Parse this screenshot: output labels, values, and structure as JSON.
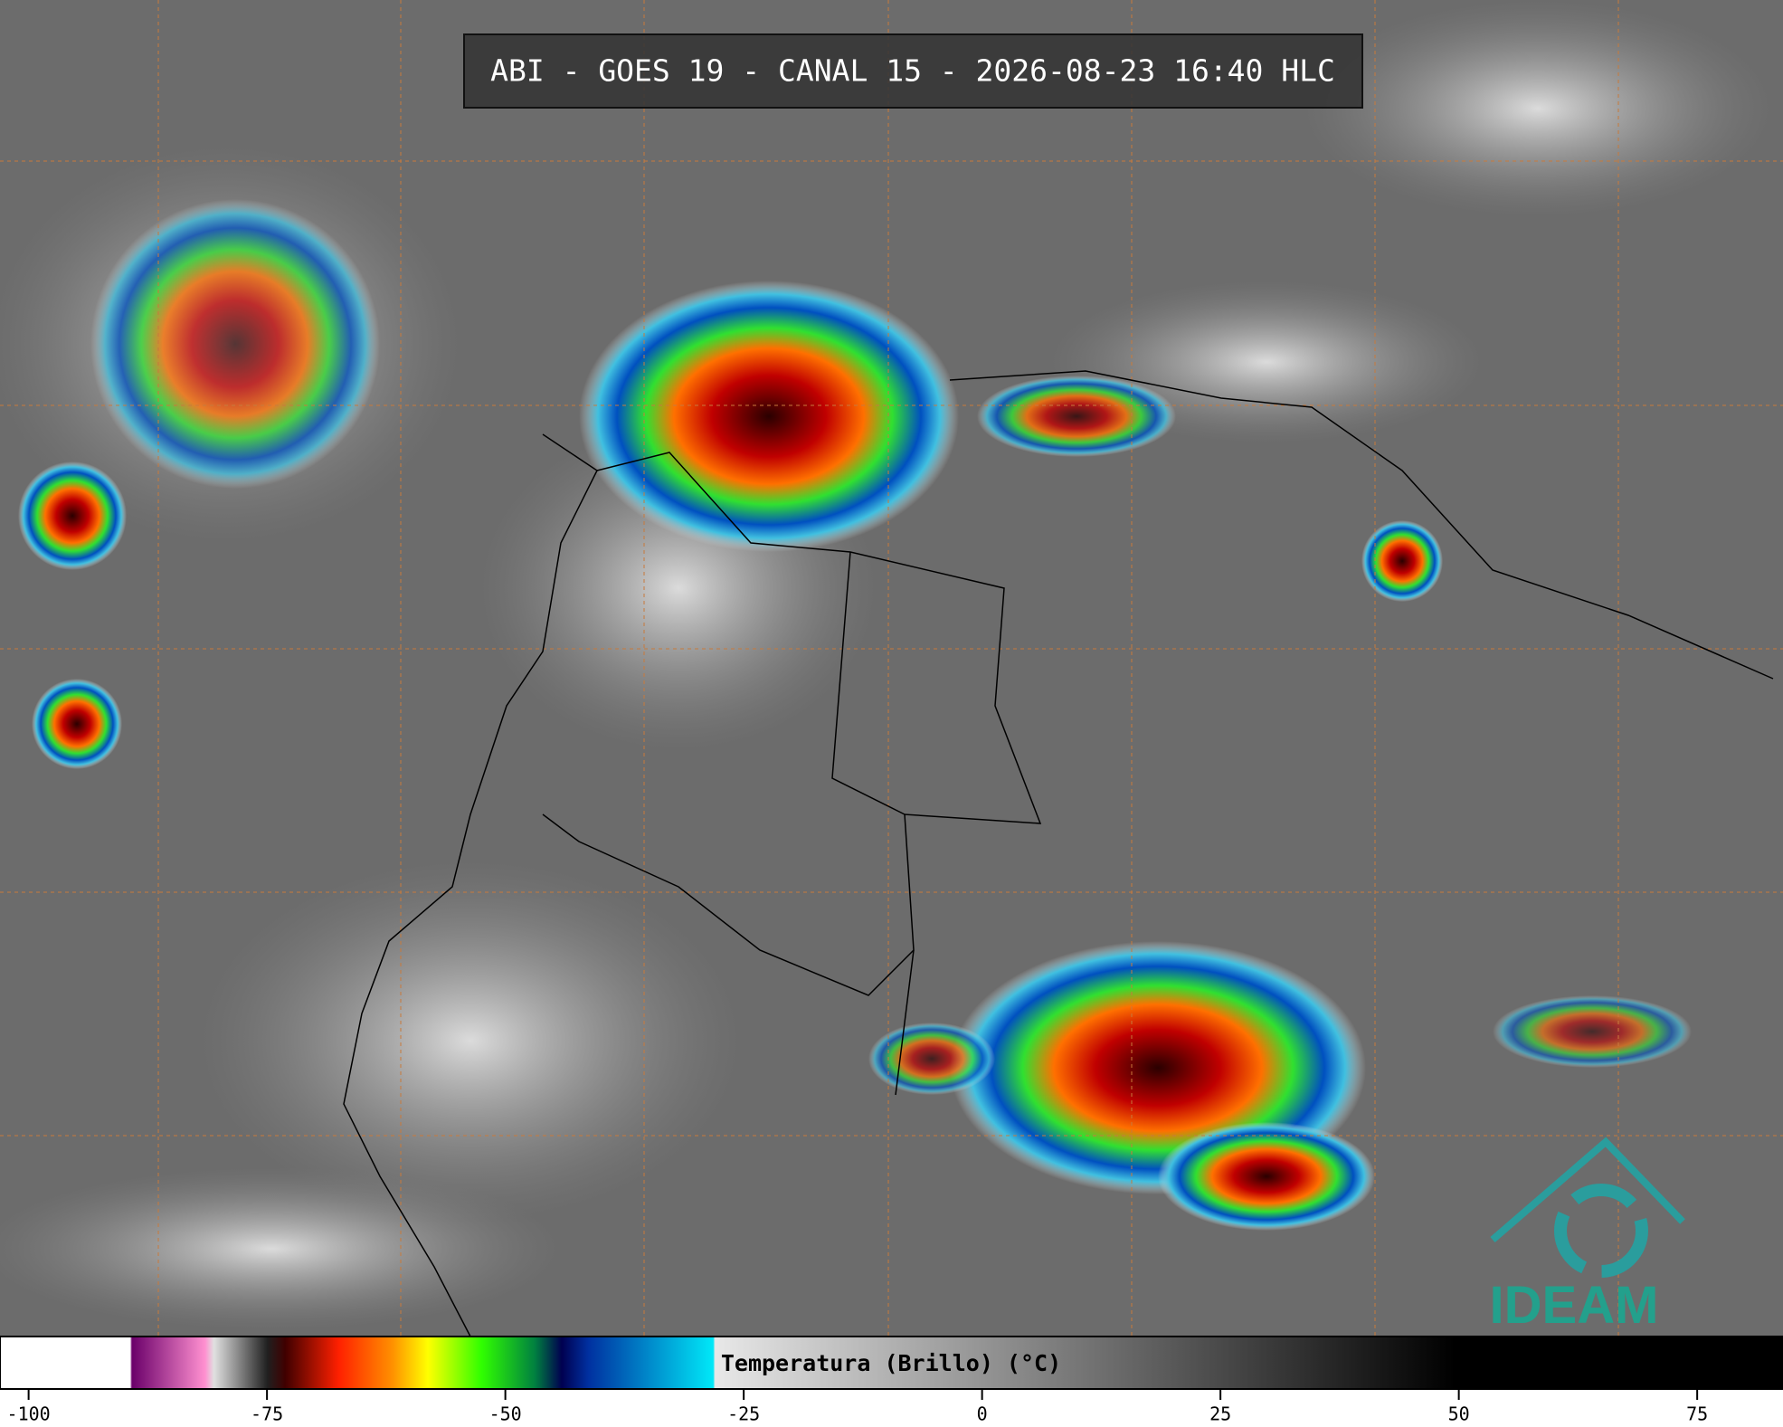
{
  "header": {
    "title": "ABI - GOES 19 - CANAL 15 - 2026-08-23 16:40 HLC"
  },
  "colorbar": {
    "label": "Temperatura (Brillo) (°C)",
    "lim": [
      -103,
      84
    ],
    "ticks": [
      -100,
      -75,
      -50,
      -25,
      0,
      25,
      50,
      75
    ]
  },
  "logo": {
    "text": "IDEAM"
  }
}
